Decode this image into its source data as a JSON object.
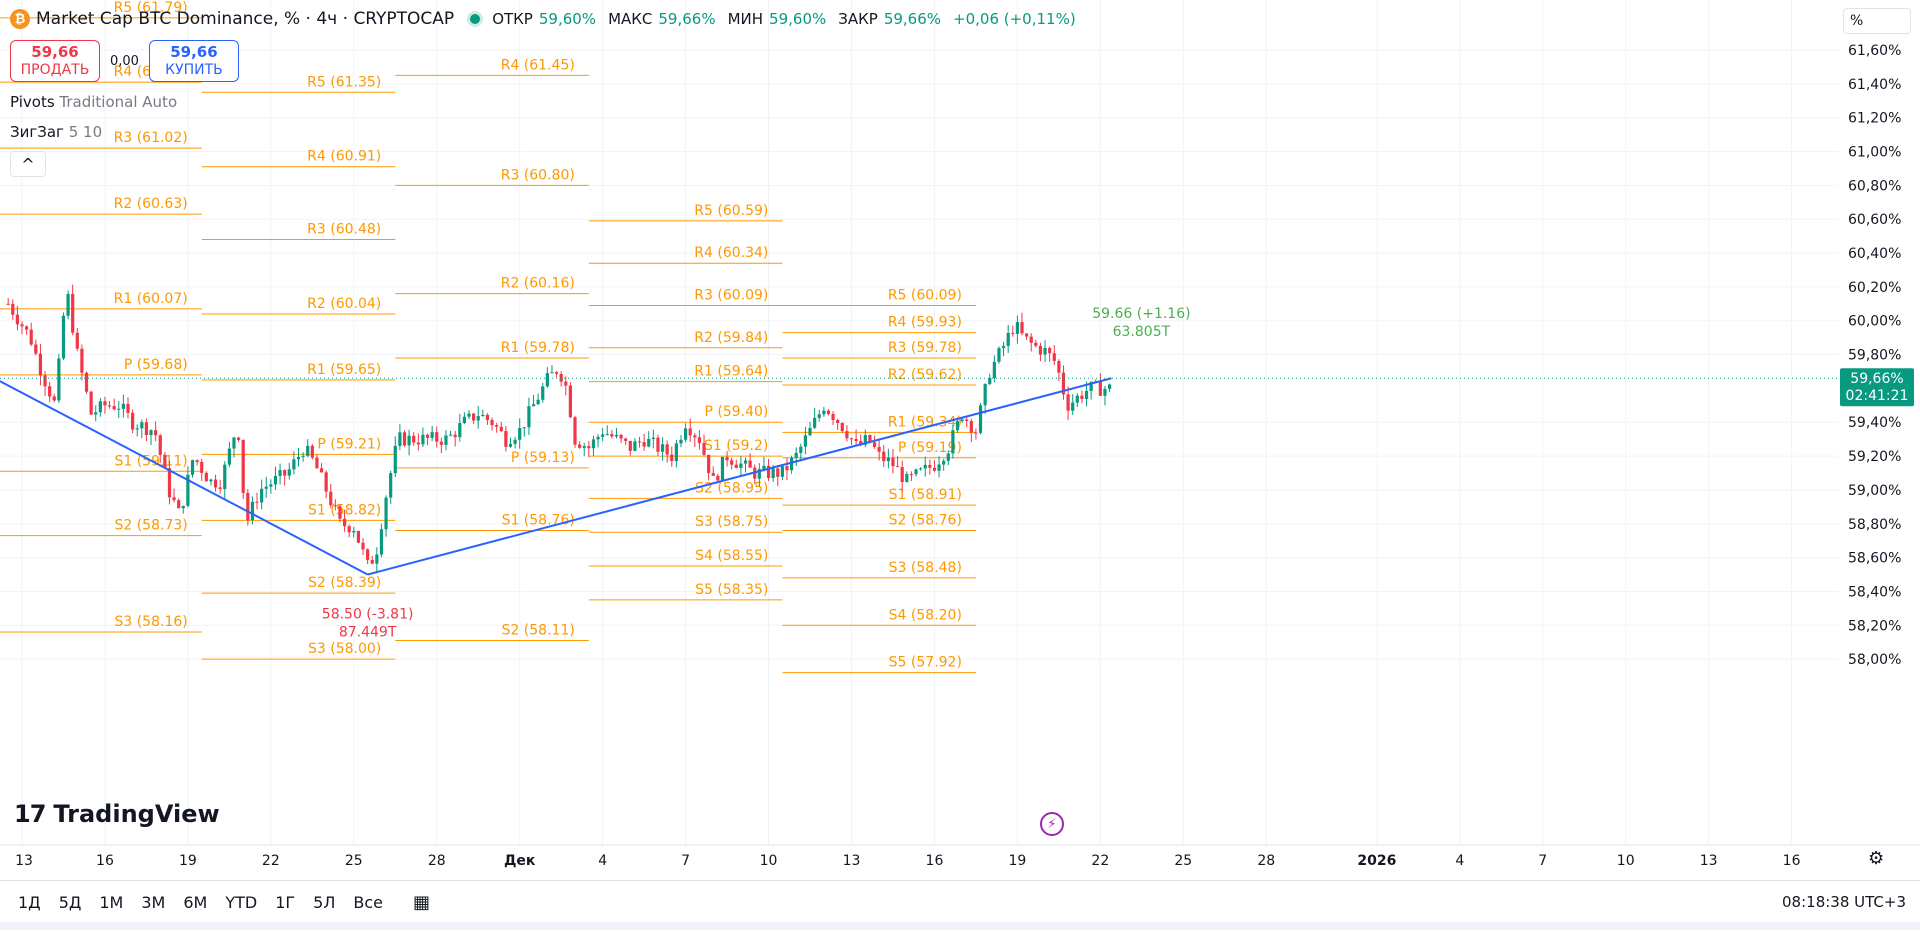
{
  "header": {
    "symbol_logo": "₿",
    "title": "Market Cap BTC Dominance, % · 4ч · CRYPTOCAP",
    "ohlc": [
      {
        "key": "ОТКР",
        "value": "59,60%"
      },
      {
        "key": "МАКС",
        "value": "59,66%"
      },
      {
        "key": "МИН",
        "value": "59,60%"
      },
      {
        "key": "ЗАКР",
        "value": "59,66%"
      }
    ],
    "change": "+0,06 (+0,11%)"
  },
  "trade": {
    "sell_price": "59,66",
    "sell_label": "ПРОДАТЬ",
    "spread": "0,00",
    "buy_price": "59,66",
    "buy_label": "КУПИТЬ"
  },
  "indicators": [
    {
      "name": "Pivots",
      "params": "Traditional Auto"
    },
    {
      "name": "ЗигЗаг",
      "params": "5 10"
    }
  ],
  "collapse_icon": "chevron-up-icon",
  "collapse_glyph": "^",
  "brand": {
    "mark": "17",
    "name": "TradingView"
  },
  "unit_label": "%",
  "bottom_bar": {
    "ranges": [
      "1Д",
      "5Д",
      "1М",
      "3М",
      "6М",
      "YTD",
      "1Г",
      "5Л",
      "Все"
    ],
    "clock": "08:18:38 UTC+3"
  },
  "colors": {
    "up": "#089981",
    "down": "#f23645",
    "pivot": "#ff9800",
    "zigzag": "#2962ff",
    "accent": "#089981"
  },
  "chart_data": {
    "type": "candlestick",
    "title": "Market Cap BTC Dominance, %",
    "ylim": [
      57.86,
      61.79
    ],
    "y_ticks": [
      {
        "v": 61.6,
        "label": "61,60%"
      },
      {
        "v": 61.4,
        "label": "61,40%"
      },
      {
        "v": 61.2,
        "label": "61,20%"
      },
      {
        "v": 61.0,
        "label": "61,00%"
      },
      {
        "v": 60.8,
        "label": "60,80%"
      },
      {
        "v": 60.6,
        "label": "60,60%"
      },
      {
        "v": 60.4,
        "label": "60,40%"
      },
      {
        "v": 60.2,
        "label": "60,20%"
      },
      {
        "v": 60.0,
        "label": "60,00%"
      },
      {
        "v": 59.8,
        "label": "59,80%"
      },
      {
        "v": 59.4,
        "label": "59,40%"
      },
      {
        "v": 59.2,
        "label": "59,20%"
      },
      {
        "v": 59.0,
        "label": "59,00%"
      },
      {
        "v": 58.8,
        "label": "58,80%"
      },
      {
        "v": 58.6,
        "label": "58,60%"
      },
      {
        "v": 58.4,
        "label": "58,40%"
      },
      {
        "v": 58.2,
        "label": "58,20%"
      },
      {
        "v": 58.0,
        "label": "58,00%"
      }
    ],
    "x_ticks": [
      {
        "d": 0,
        "label": "13"
      },
      {
        "d": 3,
        "label": "16"
      },
      {
        "d": 6,
        "label": "19"
      },
      {
        "d": 9,
        "label": "22"
      },
      {
        "d": 12,
        "label": "25"
      },
      {
        "d": 15,
        "label": "28"
      },
      {
        "d": 18,
        "label": "Дек"
      },
      {
        "d": 21,
        "label": "4"
      },
      {
        "d": 24,
        "label": "7"
      },
      {
        "d": 27,
        "label": "10"
      },
      {
        "d": 30,
        "label": "13"
      },
      {
        "d": 33,
        "label": "16"
      },
      {
        "d": 36,
        "label": "19"
      },
      {
        "d": 39,
        "label": "22"
      },
      {
        "d": 42,
        "label": "25"
      },
      {
        "d": 45,
        "label": "28"
      },
      {
        "d": 49,
        "label": "2026"
      },
      {
        "d": 52,
        "label": "4"
      },
      {
        "d": 55,
        "label": "7"
      },
      {
        "d": 58,
        "label": "10"
      },
      {
        "d": 61,
        "label": "13"
      },
      {
        "d": 64,
        "label": "16"
      }
    ],
    "x_ticks_bold": [
      "Дек",
      "2026"
    ],
    "last_price": {
      "value": 59.66,
      "label": "59,66%",
      "countdown": "02:41:21"
    },
    "pivot_periods": [
      {
        "start": -6,
        "end": -1,
        "levels": [
          {
            "name": "R5",
            "v": 61.79,
            "label": "R5 (61.79)"
          },
          {
            "name": "R4",
            "v": 61.41,
            "label": "R4 (61.41)"
          },
          {
            "name": "R3",
            "v": 61.02,
            "label": "R3 (61.02)"
          },
          {
            "name": "R2",
            "v": 60.63,
            "label": "R2 (60.63)"
          },
          {
            "name": "R1",
            "v": 60.07,
            "label": "R1 (60.07)"
          },
          {
            "name": "P",
            "v": 59.68,
            "label": "P (59.68)"
          },
          {
            "name": "S1",
            "v": 59.11,
            "label": "S1 (59.11)"
          },
          {
            "name": "S2",
            "v": 58.73,
            "label": "S2 (58.73)"
          },
          {
            "name": "S3",
            "v": 58.16,
            "label": "S3 (58.16)"
          }
        ]
      },
      {
        "start": -1,
        "end": 6.5,
        "levels": [
          {
            "name": "R5",
            "v": 61.79,
            "label": "R5 (61.79)"
          },
          {
            "name": "R4",
            "v": 61.41,
            "label": "R4 (61.41)"
          },
          {
            "name": "R3",
            "v": 61.02,
            "label": "R3 (61.02)"
          },
          {
            "name": "R2",
            "v": 60.63,
            "label": "R2 (60.63)"
          },
          {
            "name": "R1",
            "v": 60.07,
            "label": "R1 (60.07)"
          },
          {
            "name": "P",
            "v": 59.68,
            "label": "P (59.68)"
          },
          {
            "name": "S1",
            "v": 59.11,
            "label": "S1 (59.11)"
          },
          {
            "name": "S2",
            "v": 58.73,
            "label": "S2 (58.73)"
          },
          {
            "name": "S3",
            "v": 58.16,
            "label": "S3 (58.16)"
          }
        ]
      },
      {
        "start": 6.5,
        "end": 13.5,
        "levels": [
          {
            "name": "R5",
            "v": 61.35,
            "label": "R5 (61.35)"
          },
          {
            "name": "R4",
            "v": 60.91,
            "label": "R4 (60.91)"
          },
          {
            "name": "R3",
            "v": 60.48,
            "label": "R3 (60.48)"
          },
          {
            "name": "R2",
            "v": 60.04,
            "label": "R2 (60.04)"
          },
          {
            "name": "R1",
            "v": 59.65,
            "label": "R1 (59.65)"
          },
          {
            "name": "P",
            "v": 59.21,
            "label": "P (59.21)"
          },
          {
            "name": "S1",
            "v": 58.82,
            "label": "S1 (58.82)"
          },
          {
            "name": "S2",
            "v": 58.39,
            "label": "S2 (58.39)"
          },
          {
            "name": "S3",
            "v": 58.0,
            "label": "S3 (58.00)"
          }
        ]
      },
      {
        "start": 13.5,
        "end": 20.5,
        "levels": [
          {
            "name": "R4",
            "v": 61.45,
            "label": "R4 (61.45)"
          },
          {
            "name": "R3",
            "v": 60.8,
            "label": "R3 (60.80)"
          },
          {
            "name": "R2",
            "v": 60.16,
            "label": "R2 (60.16)"
          },
          {
            "name": "R1",
            "v": 59.78,
            "label": "R1 (59.78)"
          },
          {
            "name": "P",
            "v": 59.13,
            "label": "P (59.13)"
          },
          {
            "name": "S1",
            "v": 58.76,
            "label": "S1 (58.76)"
          },
          {
            "name": "S2",
            "v": 58.11,
            "label": "S2 (58.11)"
          }
        ]
      },
      {
        "start": 20.5,
        "end": 27.5,
        "levels": [
          {
            "name": "R5",
            "v": 60.59,
            "label": "R5 (60.59)"
          },
          {
            "name": "R4",
            "v": 60.34,
            "label": "R4 (60.34)"
          },
          {
            "name": "R3",
            "v": 60.09,
            "label": "R3 (60.09)"
          },
          {
            "name": "R2",
            "v": 59.84,
            "label": "R2 (59.84)"
          },
          {
            "name": "R1",
            "v": 59.64,
            "label": "R1 (59.64)"
          },
          {
            "name": "P",
            "v": 59.4,
            "label": "P (59.40)"
          },
          {
            "name": "S1",
            "v": 59.2,
            "label": "S1 (59.2)"
          },
          {
            "name": "S2",
            "v": 58.95,
            "label": "S2 (58.95)"
          },
          {
            "name": "S3",
            "v": 58.75,
            "label": "S3 (58.75)"
          },
          {
            "name": "S4",
            "v": 58.55,
            "label": "S4 (58.55)"
          },
          {
            "name": "S5",
            "v": 58.35,
            "label": "S5 (58.35)"
          }
        ]
      },
      {
        "start": 27.5,
        "end": 34.5,
        "levels": [
          {
            "name": "R5",
            "v": 60.09,
            "label": "R5 (60.09)"
          },
          {
            "name": "R4",
            "v": 59.93,
            "label": "R4 (59.93)"
          },
          {
            "name": "R3",
            "v": 59.78,
            "label": "R3 (59.78)"
          },
          {
            "name": "R2",
            "v": 59.62,
            "label": "R2 (59.62)"
          },
          {
            "name": "R1",
            "v": 59.34,
            "label": "R1 (59.34)"
          },
          {
            "name": "P",
            "v": 59.19,
            "label": "P (59.19)"
          },
          {
            "name": "S1",
            "v": 58.91,
            "label": "S1 (58.91)"
          },
          {
            "name": "S2",
            "v": 58.76,
            "label": "S2 (58.76)"
          },
          {
            "name": "S3",
            "v": 58.48,
            "label": "S3 (58.48)"
          },
          {
            "name": "S4",
            "v": 58.2,
            "label": "S4 (58.20)"
          },
          {
            "name": "S5",
            "v": 57.92,
            "label": "S5 (57.92)"
          }
        ]
      }
    ],
    "zigzag": [
      {
        "d": -1,
        "v": 59.66
      },
      {
        "d": 12.5,
        "v": 58.5,
        "label": "58.50 (-3.81)",
        "sublabel": "87.449T"
      },
      {
        "d": 39.4,
        "v": 59.66,
        "label": "59.66 (+1.16)",
        "sublabel": "63.805T"
      }
    ],
    "candle_anchors": [
      [
        -0.5,
        60.1
      ],
      [
        0.3,
        59.9
      ],
      [
        0.7,
        59.7
      ],
      [
        1.2,
        59.5
      ],
      [
        1.6,
        60.2
      ],
      [
        2.0,
        59.8
      ],
      [
        2.5,
        59.45
      ],
      [
        3.0,
        59.5
      ],
      [
        3.5,
        59.5
      ],
      [
        4.0,
        59.4
      ],
      [
        4.8,
        59.35
      ],
      [
        5.3,
        59.0
      ],
      [
        5.7,
        58.85
      ],
      [
        6.2,
        59.2
      ],
      [
        6.8,
        59.05
      ],
      [
        7.2,
        59.05
      ],
      [
        7.8,
        59.4
      ],
      [
        8.1,
        58.8
      ],
      [
        8.6,
        59.0
      ],
      [
        9.1,
        59.05
      ],
      [
        9.6,
        59.1
      ],
      [
        10.2,
        59.25
      ],
      [
        10.6,
        59.15
      ],
      [
        11.0,
        59.0
      ],
      [
        11.5,
        58.8
      ],
      [
        12.0,
        58.78
      ],
      [
        12.5,
        58.55
      ],
      [
        12.8,
        58.62
      ],
      [
        13.2,
        59.0
      ],
      [
        13.6,
        59.3
      ],
      [
        14.2,
        59.3
      ],
      [
        14.8,
        59.3
      ],
      [
        15.4,
        59.3
      ],
      [
        16.0,
        59.4
      ],
      [
        16.5,
        59.45
      ],
      [
        17.0,
        59.4
      ],
      [
        17.5,
        59.3
      ],
      [
        18.0,
        59.35
      ],
      [
        18.5,
        59.5
      ],
      [
        19.0,
        59.65
      ],
      [
        19.4,
        59.72
      ],
      [
        19.7,
        59.6
      ],
      [
        20.0,
        59.3
      ],
      [
        20.5,
        59.25
      ],
      [
        21.0,
        59.35
      ],
      [
        21.5,
        59.3
      ],
      [
        22.0,
        59.25
      ],
      [
        22.5,
        59.3
      ],
      [
        23.0,
        59.25
      ],
      [
        23.5,
        59.2
      ],
      [
        24.0,
        59.4
      ],
      [
        24.5,
        59.3
      ],
      [
        25.0,
        59.05
      ],
      [
        25.5,
        59.2
      ],
      [
        26.0,
        59.15
      ],
      [
        26.5,
        59.1
      ],
      [
        27.0,
        59.1
      ],
      [
        27.5,
        59.1
      ],
      [
        28.0,
        59.2
      ],
      [
        28.5,
        59.35
      ],
      [
        29.0,
        59.5
      ],
      [
        29.3,
        59.45
      ],
      [
        29.8,
        59.35
      ],
      [
        30.2,
        59.25
      ],
      [
        30.6,
        59.3
      ],
      [
        31.0,
        59.2
      ],
      [
        31.5,
        59.15
      ],
      [
        32.0,
        59.05
      ],
      [
        32.5,
        59.1
      ],
      [
        33.0,
        59.15
      ],
      [
        33.5,
        59.25
      ],
      [
        34.0,
        59.45
      ],
      [
        34.5,
        59.35
      ],
      [
        35.0,
        59.7
      ],
      [
        35.5,
        59.85
      ],
      [
        35.9,
        59.98
      ],
      [
        36.2,
        59.9
      ],
      [
        36.6,
        59.85
      ],
      [
        37.0,
        59.82
      ],
      [
        37.4,
        59.75
      ],
      [
        37.8,
        59.5
      ],
      [
        38.2,
        59.55
      ],
      [
        38.6,
        59.6
      ]
    ]
  }
}
